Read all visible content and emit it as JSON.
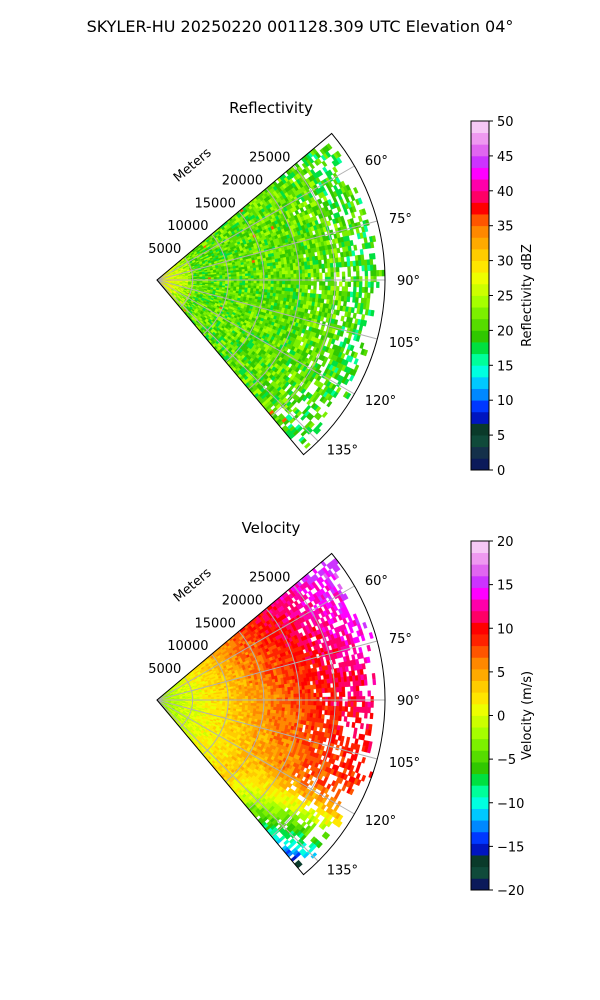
{
  "figure": {
    "title": "SKYLER-HU  20250220  001128.309 UTC Elevation 04°"
  },
  "chart_data": [
    {
      "type": "heatmap",
      "projection": "polar-sector",
      "title": "Reflectivity",
      "radial_axis_label": "Meters",
      "radial_ticks": [
        5000,
        10000,
        15000,
        20000,
        25000
      ],
      "radial_tick_labels": [
        "5000",
        "10000",
        "15000",
        "20000",
        "25000"
      ],
      "rlim": [
        0,
        32000
      ],
      "angle_range_deg": [
        50,
        140
      ],
      "angle_ticks": [
        60,
        75,
        90,
        105,
        120,
        135
      ],
      "angle_tick_labels": [
        "60°",
        "75°",
        "90°",
        "105°",
        "120°",
        "135°"
      ],
      "grid": true,
      "colorbar": {
        "label": "Reflectivity dBZ",
        "range": [
          0,
          50
        ],
        "ticks": [
          0,
          5,
          10,
          15,
          20,
          25,
          30,
          35,
          40,
          45,
          50
        ],
        "tick_labels": [
          "0",
          "5",
          "10",
          "15",
          "20",
          "25",
          "30",
          "35",
          "40",
          "45",
          "50"
        ],
        "colors": [
          "#0b1a5a",
          "#14304a",
          "#0f4a3a",
          "#0a3a2a",
          "#0015c0",
          "#0038ff",
          "#0088ff",
          "#00c8ff",
          "#00ffe0",
          "#00ff9a",
          "#00e040",
          "#30c800",
          "#56dc00",
          "#7cf000",
          "#a6ff00",
          "#ccff00",
          "#eeff00",
          "#ffe600",
          "#ffcc00",
          "#ffaa00",
          "#ff8800",
          "#ff5500",
          "#ff0000",
          "#ff0066",
          "#ff00aa",
          "#ff00ff",
          "#cc33ff",
          "#e066f0",
          "#ee99f0",
          "#f6c8f6"
        ]
      },
      "field_summary": {
        "dominant_range_dBZ": [
          18,
          26
        ],
        "near_radar_dBZ": 28,
        "echo_max_range_m": 32000
      }
    },
    {
      "type": "heatmap",
      "projection": "polar-sector",
      "title": "Velocity",
      "radial_axis_label": "Meters",
      "radial_ticks": [
        5000,
        10000,
        15000,
        20000,
        25000
      ],
      "radial_tick_labels": [
        "5000",
        "10000",
        "15000",
        "20000",
        "25000"
      ],
      "rlim": [
        0,
        32000
      ],
      "angle_range_deg": [
        50,
        140
      ],
      "angle_ticks": [
        60,
        75,
        90,
        105,
        120,
        135
      ],
      "angle_tick_labels": [
        "60°",
        "75°",
        "90°",
        "105°",
        "120°",
        "135°"
      ],
      "grid": true,
      "colorbar": {
        "label": "Velocity (m/s)",
        "range": [
          -20,
          20
        ],
        "ticks": [
          -20,
          -15,
          -10,
          -5,
          0,
          5,
          10,
          15,
          20
        ],
        "tick_labels": [
          "−20",
          "−15",
          "−10",
          "−5",
          "0",
          "5",
          "10",
          "15",
          "20"
        ],
        "colors": [
          "#0b1a5a",
          "#0f4a3a",
          "#0a3a2a",
          "#0015c0",
          "#0038ff",
          "#0088ff",
          "#00c8ff",
          "#00ffe0",
          "#00ff9a",
          "#00e040",
          "#30c800",
          "#56dc00",
          "#7cf000",
          "#a6ff00",
          "#ccff00",
          "#eeff00",
          "#ffe600",
          "#ffcc00",
          "#ffaa00",
          "#ff8800",
          "#ff5500",
          "#ff2200",
          "#ff0000",
          "#ff0066",
          "#ff00aa",
          "#ff00ff",
          "#cc33ff",
          "#e066f0",
          "#ee99f0",
          "#f6c8f6"
        ]
      },
      "field_summary": {
        "near_radar_ms": -3,
        "mid_range_ms": 6,
        "far_north_ms": 14,
        "far_south_ms": -9
      }
    }
  ]
}
